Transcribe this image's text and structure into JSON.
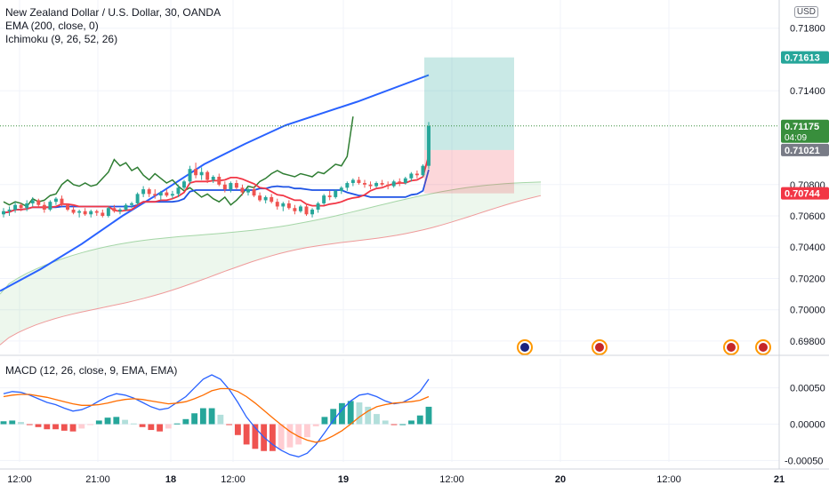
{
  "chart_data": {
    "type": "candlestick",
    "instrument": "New Zealand Dollar / U.S. Dollar, 30, OANDA",
    "currency": "USD",
    "indicators": [
      "EMA (200, close, 0)",
      "Ichimoku (9, 26, 52, 26)"
    ],
    "price_axis": {
      "ticks": [
        "0.71800",
        "0.71400",
        "0.70800",
        "0.70600",
        "0.70400",
        "0.70200",
        "0.70000",
        "0.69800"
      ],
      "range": [
        0.6972,
        0.7198
      ]
    },
    "time_axis": {
      "ticks": [
        "12:00",
        "21:00",
        "18",
        "12:00",
        "19",
        "12:00",
        "20",
        "12:00",
        "21"
      ]
    },
    "price_labels": [
      {
        "name": "target",
        "value": "0.71613",
        "color": "#26a69a"
      },
      {
        "name": "last-price",
        "value": "0.71175",
        "sub": "04:09",
        "color": "#388e3c"
      },
      {
        "name": "entry",
        "value": "0.71021",
        "color": "#787b86"
      },
      {
        "name": "stop",
        "value": "0.70744",
        "color": "#f23645"
      }
    ],
    "candles": [
      [
        0.7061,
        0.7065,
        0.7059,
        0.7063
      ],
      [
        0.7063,
        0.7066,
        0.706,
        0.7064
      ],
      [
        0.7064,
        0.7069,
        0.7062,
        0.7067
      ],
      [
        0.7067,
        0.7068,
        0.7063,
        0.7065
      ],
      [
        0.7065,
        0.707,
        0.7063,
        0.7068
      ],
      [
        0.7068,
        0.7072,
        0.7066,
        0.707
      ],
      [
        0.707,
        0.7071,
        0.7066,
        0.7067
      ],
      [
        0.7067,
        0.7069,
        0.7062,
        0.7064
      ],
      [
        0.7064,
        0.707,
        0.7063,
        0.7069
      ],
      [
        0.7069,
        0.7072,
        0.7067,
        0.7071
      ],
      [
        0.7071,
        0.7073,
        0.7066,
        0.7067
      ],
      [
        0.7067,
        0.7068,
        0.7063,
        0.7064
      ],
      [
        0.7064,
        0.7066,
        0.7061,
        0.7062
      ],
      [
        0.7062,
        0.7064,
        0.7059,
        0.7063
      ],
      [
        0.7063,
        0.7065,
        0.706,
        0.7061
      ],
      [
        0.7061,
        0.7064,
        0.7059,
        0.7063
      ],
      [
        0.7063,
        0.7064,
        0.706,
        0.7062
      ],
      [
        0.7062,
        0.7064,
        0.7059,
        0.706
      ],
      [
        0.706,
        0.7066,
        0.7059,
        0.7065
      ],
      [
        0.7065,
        0.7067,
        0.7062,
        0.7063
      ],
      [
        0.7063,
        0.7065,
        0.7061,
        0.7064
      ],
      [
        0.7064,
        0.7068,
        0.7063,
        0.7067
      ],
      [
        0.7067,
        0.7069,
        0.7065,
        0.7068
      ],
      [
        0.7068,
        0.7075,
        0.7067,
        0.7074
      ],
      [
        0.7074,
        0.7079,
        0.7072,
        0.7077
      ],
      [
        0.7077,
        0.7078,
        0.7072,
        0.7074
      ],
      [
        0.7074,
        0.7077,
        0.7071,
        0.7073
      ],
      [
        0.7073,
        0.7076,
        0.707,
        0.7075
      ],
      [
        0.7075,
        0.7077,
        0.7072,
        0.7073
      ],
      [
        0.7073,
        0.7076,
        0.7071,
        0.7074
      ],
      [
        0.7074,
        0.708,
        0.7072,
        0.7078
      ],
      [
        0.7078,
        0.7083,
        0.7077,
        0.7082
      ],
      [
        0.7082,
        0.7092,
        0.708,
        0.709
      ],
      [
        0.709,
        0.7094,
        0.7084,
        0.7086
      ],
      [
        0.7086,
        0.7091,
        0.7083,
        0.7088
      ],
      [
        0.7088,
        0.7089,
        0.7081,
        0.7083
      ],
      [
        0.7083,
        0.7086,
        0.7081,
        0.7085
      ],
      [
        0.7085,
        0.7087,
        0.7079,
        0.708
      ],
      [
        0.708,
        0.7082,
        0.7075,
        0.7077
      ],
      [
        0.7077,
        0.7082,
        0.7075,
        0.7081
      ],
      [
        0.7081,
        0.7083,
        0.7077,
        0.7078
      ],
      [
        0.7078,
        0.708,
        0.7073,
        0.7075
      ],
      [
        0.7075,
        0.7078,
        0.7073,
        0.7077
      ],
      [
        0.7077,
        0.7079,
        0.7072,
        0.7073
      ],
      [
        0.7073,
        0.7075,
        0.7069,
        0.707
      ],
      [
        0.707,
        0.7073,
        0.7068,
        0.7072
      ],
      [
        0.7072,
        0.7074,
        0.7068,
        0.7069
      ],
      [
        0.7069,
        0.7071,
        0.7064,
        0.7066
      ],
      [
        0.7066,
        0.7069,
        0.7063,
        0.7068
      ],
      [
        0.7068,
        0.707,
        0.7064,
        0.7065
      ],
      [
        0.7065,
        0.7067,
        0.7061,
        0.7063
      ],
      [
        0.7063,
        0.7067,
        0.7062,
        0.7066
      ],
      [
        0.7066,
        0.7068,
        0.706,
        0.7061
      ],
      [
        0.7061,
        0.7065,
        0.7059,
        0.7064
      ],
      [
        0.7064,
        0.7069,
        0.7062,
        0.7068
      ],
      [
        0.7068,
        0.7074,
        0.7067,
        0.7073
      ],
      [
        0.7073,
        0.7076,
        0.707,
        0.7072
      ],
      [
        0.7072,
        0.7077,
        0.7071,
        0.7076
      ],
      [
        0.7076,
        0.7079,
        0.7074,
        0.7078
      ],
      [
        0.7078,
        0.7082,
        0.7076,
        0.7081
      ],
      [
        0.7081,
        0.7084,
        0.7079,
        0.7083
      ],
      [
        0.7083,
        0.7085,
        0.708,
        0.7081
      ],
      [
        0.7081,
        0.7083,
        0.7078,
        0.708
      ],
      [
        0.708,
        0.7082,
        0.7077,
        0.7079
      ],
      [
        0.7079,
        0.7082,
        0.7078,
        0.7081
      ],
      [
        0.7081,
        0.7083,
        0.7079,
        0.708
      ],
      [
        0.708,
        0.7082,
        0.7077,
        0.7079
      ],
      [
        0.7079,
        0.7083,
        0.7078,
        0.7082
      ],
      [
        0.7082,
        0.7084,
        0.7079,
        0.7081
      ],
      [
        0.7081,
        0.7085,
        0.708,
        0.7084
      ],
      [
        0.7084,
        0.7088,
        0.7082,
        0.7087
      ],
      [
        0.7087,
        0.7089,
        0.7084,
        0.7086
      ],
      [
        0.7086,
        0.7093,
        0.7085,
        0.7092
      ],
      [
        0.7092,
        0.712,
        0.709,
        0.71175
      ]
    ],
    "ema200": [
      [
        0,
        0.7012
      ],
      [
        20,
        0.7026
      ],
      [
        40,
        0.7042
      ],
      [
        60,
        0.706
      ],
      [
        80,
        0.7076
      ],
      [
        100,
        0.7093
      ],
      [
        120,
        0.7106
      ],
      [
        140,
        0.7118
      ],
      [
        175,
        0.7133
      ],
      [
        210,
        0.715
      ]
    ],
    "macd": {
      "label": "MACD (12, 26, close, 9, EMA, EMA)",
      "ticks": [
        "0.00050",
        "0.00000",
        "-0.00050"
      ],
      "range": [
        -0.00052,
        0.0009
      ],
      "macd": [
        0.00042,
        0.00045,
        0.00044,
        0.0004,
        0.00035,
        0.0003,
        0.00027,
        0.00022,
        0.00018,
        0.0002,
        0.00025,
        0.00032,
        0.00038,
        0.00042,
        0.0004,
        0.00036,
        0.0003,
        0.00024,
        0.0002,
        0.00022,
        0.0003,
        0.00038,
        0.0005,
        0.00062,
        0.00068,
        0.00062,
        0.00048,
        0.0003,
        0.0001,
        -5e-05,
        -0.00018,
        -0.00028,
        -0.00036,
        -0.00042,
        -0.00045,
        -0.0004,
        -0.00028,
        -0.00012,
        5e-05,
        0.0002,
        0.00032,
        0.0004,
        0.00042,
        0.00038,
        0.00032,
        0.00028,
        0.0003,
        0.00036,
        0.00045,
        0.00062
      ],
      "signal": [
        0.00038,
        0.0004,
        0.00041,
        0.00041,
        0.00039,
        0.00037,
        0.00034,
        0.00031,
        0.00028,
        0.00026,
        0.00026,
        0.00027,
        0.00029,
        0.00032,
        0.00034,
        0.00035,
        0.00034,
        0.00032,
        0.0003,
        0.00028,
        0.00029,
        0.00031,
        0.00035,
        0.0004,
        0.00046,
        0.00049,
        0.00049,
        0.00045,
        0.00038,
        0.00029,
        0.00019,
        9e-05,
        -1e-05,
        -0.0001,
        -0.00017,
        -0.00022,
        -0.00025,
        -0.00022,
        -0.00016,
        -9e-05,
        0.0,
        0.0001,
        0.00018,
        0.00024,
        0.00027,
        0.00029,
        0.0003,
        0.00031,
        0.00033,
        0.00038
      ],
      "histogram": [
        4e-05,
        5e-05,
        3e-05,
        -1e-05,
        -4e-05,
        -7e-05,
        -7e-05,
        -9e-05,
        -0.0001,
        -6e-05,
        -1e-05,
        5e-05,
        9e-05,
        0.0001,
        6e-05,
        1e-05,
        -4e-05,
        -8e-05,
        -0.0001,
        -6e-05,
        1e-05,
        7e-05,
        0.00015,
        0.00022,
        0.00022,
        0.00013,
        -1e-05,
        -0.00015,
        -0.00028,
        -0.00034,
        -0.00037,
        -0.00037,
        -0.00035,
        -0.00032,
        -0.00028,
        -0.00018,
        -3e-05,
        0.0001,
        0.00021,
        0.00029,
        0.00032,
        0.0003,
        0.00024,
        0.00014,
        5e-05,
        -1e-05,
        0.0,
        5e-05,
        0.00012,
        0.00024
      ]
    },
    "events": [
      "flag-nz",
      "flag-us",
      "flag-us",
      "flag-us"
    ]
  }
}
